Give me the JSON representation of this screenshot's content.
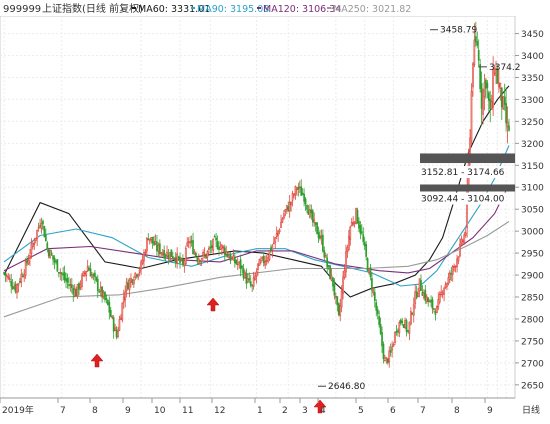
{
  "header": {
    "symbol": "999999",
    "title": "上证指数(日线 前复权)",
    "ma_labels": [
      {
        "text": "MA60: 3331.01",
        "color": "#1a1a1a"
      },
      {
        "text": "MA90: 3195.08",
        "color": "#2aa3c8"
      },
      {
        "text": "MA120: 3106.34",
        "color": "#7a2e7a"
      },
      {
        "text": "MA250: 3021.82",
        "color": "#9a9a9a"
      }
    ]
  },
  "chart_data": {
    "type": "candlestick",
    "title": "",
    "ylim": [
      2620,
      3490
    ],
    "yticks": [
      2650,
      2700,
      2750,
      2800,
      2850,
      2900,
      2950,
      3000,
      3050,
      3100,
      3150,
      3200,
      3250,
      3300,
      3350,
      3400,
      3450
    ],
    "xticks": [
      "2019年",
      "7",
      "8",
      "9",
      "10",
      "11",
      "12",
      "1",
      "2",
      "3",
      "4",
      "5",
      "6",
      "7",
      "8",
      "9"
    ],
    "x_axis_unit": "日线",
    "grid": true,
    "up_color": "#e0463c",
    "down_color": "#2e9e2e",
    "annotations": [
      {
        "text": "3458.79",
        "value": 3458.79
      },
      {
        "text": "3374.2",
        "value": 3374.2
      },
      {
        "text": "2646.80",
        "value": 2646.8
      }
    ],
    "resistance_bands": [
      {
        "text": "3152.81 - 3174.66",
        "low": 3152.81,
        "high": 3174.66
      },
      {
        "text": "3092.44 - 3104.00",
        "low": 3092.44,
        "high": 3104.0
      }
    ],
    "arrows_at_lows": [
      {
        "month": "8",
        "value": 2735
      },
      {
        "month": "12",
        "value": 2857
      },
      {
        "month": "3",
        "value": 2646.8
      }
    ],
    "moving_averages": [
      {
        "name": "MA60",
        "color": "#1a1a1a",
        "values": [
          [
            0,
            2900
          ],
          [
            25,
            3065
          ],
          [
            45,
            3040
          ],
          [
            70,
            2930
          ],
          [
            95,
            2915
          ],
          [
            120,
            2935
          ],
          [
            140,
            2945
          ],
          [
            160,
            2955
          ],
          [
            180,
            2950
          ],
          [
            200,
            2935
          ],
          [
            220,
            2920
          ],
          [
            230,
            2880
          ],
          [
            240,
            2850
          ],
          [
            255,
            2870
          ],
          [
            270,
            2880
          ],
          [
            285,
            2900
          ],
          [
            295,
            2935
          ],
          [
            304,
            2985
          ],
          [
            312,
            3070
          ],
          [
            322,
            3180
          ],
          [
            332,
            3250
          ],
          [
            342,
            3300
          ],
          [
            350,
            3331
          ]
        ]
      },
      {
        "name": "MA90",
        "color": "#2aa3c8",
        "values": [
          [
            0,
            2930
          ],
          [
            25,
            2990
          ],
          [
            50,
            3005
          ],
          [
            75,
            2985
          ],
          [
            100,
            2940
          ],
          [
            130,
            2920
          ],
          [
            160,
            2950
          ],
          [
            175,
            2960
          ],
          [
            195,
            2960
          ],
          [
            215,
            2935
          ],
          [
            235,
            2920
          ],
          [
            255,
            2905
          ],
          [
            275,
            2875
          ],
          [
            290,
            2880
          ],
          [
            300,
            2910
          ],
          [
            310,
            2960
          ],
          [
            320,
            3010
          ],
          [
            330,
            3060
          ],
          [
            340,
            3120
          ],
          [
            350,
            3195
          ]
        ]
      },
      {
        "name": "MA120",
        "color": "#7a2e7a",
        "values": [
          [
            0,
            2910
          ],
          [
            30,
            2960
          ],
          [
            60,
            2965
          ],
          [
            90,
            2950
          ],
          [
            120,
            2935
          ],
          [
            150,
            2930
          ],
          [
            175,
            2955
          ],
          [
            200,
            2955
          ],
          [
            230,
            2925
          ],
          [
            260,
            2910
          ],
          [
            280,
            2905
          ],
          [
            295,
            2915
          ],
          [
            310,
            2950
          ],
          [
            325,
            2985
          ],
          [
            340,
            3040
          ],
          [
            350,
            3106
          ]
        ]
      },
      {
        "name": "MA250",
        "color": "#9a9a9a",
        "values": [
          [
            0,
            2805
          ],
          [
            40,
            2850
          ],
          [
            80,
            2855
          ],
          [
            110,
            2870
          ],
          [
            150,
            2895
          ],
          [
            200,
            2915
          ],
          [
            250,
            2915
          ],
          [
            280,
            2920
          ],
          [
            300,
            2935
          ],
          [
            320,
            2965
          ],
          [
            335,
            2990
          ],
          [
            350,
            3022
          ]
        ]
      }
    ]
  }
}
